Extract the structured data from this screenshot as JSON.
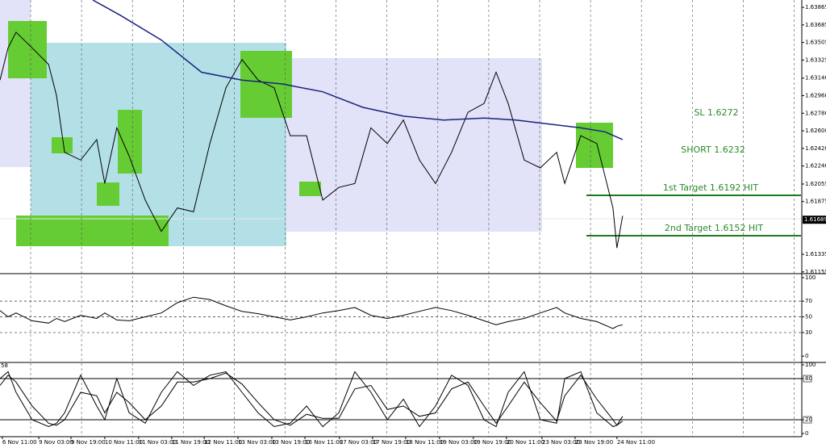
{
  "chart_data": [
    {
      "type": "line",
      "xlim": [
        0,
        24
      ],
      "ylim": [
        1.61145,
        1.6394
      ],
      "x": [
        0,
        0.24,
        0.48,
        0.96,
        1.45,
        1.69,
        1.93,
        2.41,
        2.89,
        3.13,
        3.49,
        3.86,
        4.34,
        4.82,
        5.3,
        5.78,
        6.27,
        6.75,
        7.23,
        7.71,
        8.19,
        8.67,
        9.16,
        9.64,
        10.12,
        10.6,
        11.08,
        11.57,
        12.05,
        12.53,
        13.01,
        13.49,
        13.98,
        14.46,
        14.82,
        15.18,
        15.66,
        16.14,
        16.63,
        16.87,
        17.35,
        17.83,
        18.31,
        18.43,
        18.6
      ],
      "yticks": [
        {
          "value": 1.63865,
          "label": "1.63865"
        },
        {
          "value": 1.63685,
          "label": "1.63685"
        },
        {
          "value": 1.63505,
          "label": "1.63505"
        },
        {
          "value": 1.63325,
          "label": "1.63325"
        },
        {
          "value": 1.6314,
          "label": "1.63140"
        },
        {
          "value": 1.6296,
          "label": "1.62960"
        },
        {
          "value": 1.6278,
          "label": "1.62780"
        },
        {
          "value": 1.626,
          "label": "1.62600"
        },
        {
          "value": 1.6242,
          "label": "1.62420"
        },
        {
          "value": 1.6224,
          "label": "1.62240"
        },
        {
          "value": 1.62055,
          "label": "1.62055"
        },
        {
          "value": 1.61875,
          "label": "1.61875"
        },
        {
          "value": 1.61335,
          "label": "1.61335"
        },
        {
          "value": 1.61155,
          "label": "1.61155"
        }
      ],
      "xticks": [
        {
          "value": 0.07,
          "label": "6 Nov 11:00"
        },
        {
          "value": 1.16,
          "label": "9 Nov 03:00"
        },
        {
          "value": 2.12,
          "label": "9 Nov 19:00"
        },
        {
          "value": 3.13,
          "label": "10 Nov 11:00"
        },
        {
          "value": 4.14,
          "label": "11 Nov 03:00"
        },
        {
          "value": 5.13,
          "label": "11 Nov 19:00"
        },
        {
          "value": 6.1,
          "label": "12 Nov 11:00"
        },
        {
          "value": 7.11,
          "label": "13 Nov 03:00"
        },
        {
          "value": 8.12,
          "label": "13 Nov 19:00"
        },
        {
          "value": 9.11,
          "label": "16 Nov 11:00"
        },
        {
          "value": 10.14,
          "label": "17 Nov 03:00"
        },
        {
          "value": 11.13,
          "label": "17 Nov 19:00"
        },
        {
          "value": 12.12,
          "label": "18 Nov 11:00"
        },
        {
          "value": 13.13,
          "label": "19 Nov 03:00"
        },
        {
          "value": 14.14,
          "label": "19 Nov 19:00"
        },
        {
          "value": 15.13,
          "label": "20 Nov 11:00"
        },
        {
          "value": 16.19,
          "label": "23 Nov 03:00"
        },
        {
          "value": 17.18,
          "label": "23 Nov 19:00"
        },
        {
          "value": 18.43,
          "label": "24 Nov 11:00"
        }
      ],
      "current_price": {
        "value": 1.61689,
        "label": "1.61689"
      },
      "annotations": [
        "SL 1.6272",
        "SHORT 1.6232",
        "1st Target 1.6192 HIT",
        "2nd Target 1.6152 HIT"
      ],
      "series": [
        {
          "color": "#000000",
          "values": [
            1.6312,
            1.6345,
            1.6361,
            1.6345,
            1.6328,
            1.6296,
            1.6238,
            1.623,
            1.6251,
            1.6206,
            1.6263,
            1.6234,
            1.6189,
            1.6157,
            1.6181,
            1.6177,
            1.6247,
            1.6304,
            1.6333,
            1.6312,
            1.6304,
            1.6255,
            1.6255,
            1.6189,
            1.6202,
            1.6206,
            1.6263,
            1.6247,
            1.6271,
            1.623,
            1.6206,
            1.6238,
            1.6279,
            1.6288,
            1.632,
            1.6288,
            1.623,
            1.6222,
            1.6238,
            1.6206,
            1.6255,
            1.6247,
            1.6181,
            1.614,
            1.6173
          ]
        },
        {
          "color": "#1a237e",
          "x": [
            2.77,
            3.61,
            4.82,
            6.02,
            7.23,
            8.43,
            9.64,
            10.84,
            12.05,
            13.25,
            14.46,
            15.42,
            16.39,
            17.35,
            18.07,
            18.6
          ],
          "values": [
            1.6394,
            1.6378,
            1.6353,
            1.632,
            1.6312,
            1.6308,
            1.63,
            1.6284,
            1.6275,
            1.6271,
            1.6273,
            1.6271,
            1.6267,
            1.6263,
            1.6259,
            1.6251
          ]
        }
      ]
    },
    {
      "type": "line",
      "ylim": [
        -7,
        104
      ],
      "yticks": [
        0,
        30,
        50,
        70,
        100
      ],
      "grid": "dashed",
      "series": [
        {
          "color": "#000000",
          "values": [
            58,
            50,
            55,
            45,
            42,
            48,
            44,
            52,
            48,
            55,
            46,
            45,
            50,
            55,
            68,
            75,
            72,
            64,
            57,
            54,
            50,
            46,
            50,
            55,
            58,
            62,
            52,
            48,
            52,
            57,
            62,
            58,
            52,
            45,
            40,
            44,
            48,
            55,
            62,
            55,
            48,
            44,
            35,
            38,
            40
          ]
        }
      ]
    },
    {
      "type": "line",
      "ylim": [
        -3.5,
        102.4
      ],
      "yticks": [
        0,
        20,
        80,
        100
      ],
      "grid": "solid",
      "label": "58",
      "series": [
        {
          "color": "#000000",
          "values": [
            80,
            90,
            60,
            20,
            10,
            15,
            30,
            85,
            40,
            20,
            80,
            30,
            15,
            60,
            90,
            70,
            85,
            90,
            60,
            30,
            10,
            15,
            40,
            10,
            30,
            90,
            60,
            20,
            50,
            10,
            40,
            85,
            70,
            20,
            10,
            60,
            90,
            20,
            15,
            80,
            90,
            30,
            10,
            12,
            25
          ]
        },
        {
          "color": "#000000",
          "values": [
            70,
            85,
            75,
            40,
            15,
            12,
            20,
            60,
            55,
            30,
            60,
            45,
            20,
            40,
            75,
            75,
            80,
            88,
            72,
            45,
            20,
            12,
            28,
            22,
            22,
            65,
            70,
            35,
            40,
            25,
            30,
            65,
            75,
            40,
            15,
            40,
            75,
            45,
            18,
            55,
            85,
            50,
            20,
            12,
            18
          ]
        }
      ]
    }
  ]
}
